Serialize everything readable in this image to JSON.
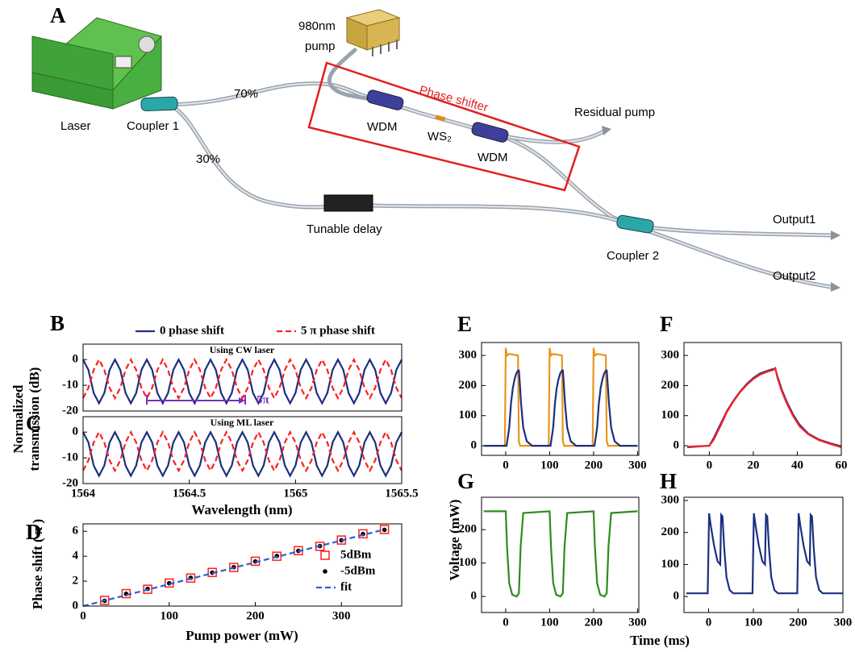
{
  "diagram": {
    "panel": "A",
    "pump": [
      "980nm",
      "pump"
    ],
    "laser": "Laser",
    "coupler1": "Coupler 1",
    "split_upper": "70%",
    "split_lower": "30%",
    "phase_shifter": "Phase shifter",
    "wdm": [
      "WDM",
      "WDM"
    ],
    "ws2": "WS₂",
    "residual": "Residual pump",
    "delay": "Tunable delay",
    "coupler2": "Coupler 2",
    "outputs": [
      "Output1",
      "Output2"
    ]
  },
  "chart_data": [
    {
      "type": "line",
      "panel": "B",
      "ylabel": [
        "Normalized",
        "transmission (dB)"
      ],
      "annotations": [
        "Using CW laser",
        "5π"
      ],
      "x": [
        1564,
        1564.025,
        1564.05,
        1564.075,
        1564.1,
        1564.125,
        1564.15,
        1564.175,
        1564.2,
        1564.225,
        1564.25,
        1564.275,
        1564.3,
        1564.325,
        1564.35,
        1564.375,
        1564.4,
        1564.425,
        1564.45,
        1564.475,
        1564.5,
        1564.525,
        1564.55,
        1564.575,
        1564.6,
        1564.625,
        1564.65,
        1564.675,
        1564.7,
        1564.725,
        1564.75,
        1564.775,
        1564.8,
        1564.825,
        1564.85,
        1564.875,
        1564.9,
        1564.925,
        1564.95,
        1564.975,
        1565,
        1565.025,
        1565.05,
        1565.075,
        1565.1,
        1565.125,
        1565.15,
        1565.175,
        1565.2,
        1565.225,
        1565.25,
        1565.275,
        1565.3,
        1565.325,
        1565.35,
        1565.375,
        1565.4,
        1565.425,
        1565.45,
        1565.475,
        1565.5
      ],
      "series": [
        {
          "name": "0 phase shift",
          "color": "#1c2f80",
          "style": "line",
          "values": [
            0,
            -4,
            -13,
            -17,
            -13,
            -4,
            0,
            -4,
            -13,
            -17,
            -13,
            -4,
            0,
            -4,
            -13,
            -17,
            -13,
            -4,
            0,
            -4,
            -13,
            -17,
            -13,
            -4,
            0,
            -4,
            -13,
            -17,
            -13,
            -4,
            0,
            -4,
            -13,
            -17,
            -13,
            -4,
            0,
            -4,
            -13,
            -17,
            -13,
            -4,
            0,
            -4,
            -13,
            -17,
            -13,
            -4,
            0,
            -4,
            -13,
            -17,
            -13,
            -4,
            0,
            -4,
            -13,
            -17,
            -13,
            -4,
            0
          ]
        },
        {
          "name": "5 π phase shift",
          "color": "#ff1f1f",
          "style": "dashed",
          "values": [
            -15,
            -11,
            -4,
            0,
            -4,
            -11,
            -15,
            -11,
            -4,
            0,
            -4,
            -11,
            -15,
            -11,
            -4,
            0,
            -4,
            -11,
            -15,
            -11,
            -4,
            0,
            -4,
            -11,
            -15,
            -11,
            -4,
            0,
            -4,
            -11,
            -15,
            -11,
            -4,
            0,
            -4,
            -11,
            -15,
            -11,
            -4,
            0,
            -4,
            -11,
            -15,
            -11,
            -4,
            0,
            -4,
            -11,
            -15,
            -11,
            -4,
            0,
            -4,
            -11,
            -15,
            -11,
            -4,
            0,
            -4,
            -11,
            -15
          ]
        }
      ],
      "xlim": [
        1564,
        1565.5
      ],
      "ylim": [
        -20,
        6
      ],
      "yticks": [
        0,
        -10,
        -20
      ]
    },
    {
      "type": "line",
      "panel": "C",
      "xlabel": "Wavelength (nm)",
      "annotations": [
        "Using ML laser"
      ],
      "x": [
        1564,
        1564.025,
        1564.05,
        1564.075,
        1564.1,
        1564.125,
        1564.15,
        1564.175,
        1564.2,
        1564.225,
        1564.25,
        1564.275,
        1564.3,
        1564.325,
        1564.35,
        1564.375,
        1564.4,
        1564.425,
        1564.45,
        1564.475,
        1564.5,
        1564.525,
        1564.55,
        1564.575,
        1564.6,
        1564.625,
        1564.65,
        1564.675,
        1564.7,
        1564.725,
        1564.75,
        1564.775,
        1564.8,
        1564.825,
        1564.85,
        1564.875,
        1564.9,
        1564.925,
        1564.95,
        1564.975,
        1565,
        1565.025,
        1565.05,
        1565.075,
        1565.1,
        1565.125,
        1565.15,
        1565.175,
        1565.2,
        1565.225,
        1565.25,
        1565.275,
        1565.3,
        1565.325,
        1565.35,
        1565.375,
        1565.4,
        1565.425,
        1565.45,
        1565.475,
        1565.5
      ],
      "series": [
        {
          "color": "#1c2f80",
          "style": "line",
          "values": [
            0,
            -4,
            -13,
            -17,
            -13,
            -4,
            0,
            -4,
            -13,
            -17,
            -13,
            -4,
            0,
            -4,
            -13,
            -17,
            -13,
            -4,
            0,
            -4,
            -13,
            -17,
            -13,
            -4,
            0,
            -4,
            -13,
            -17,
            -13,
            -4,
            0,
            -4,
            -13,
            -17,
            -13,
            -4,
            0,
            -4,
            -13,
            -17,
            -13,
            -4,
            0,
            -4,
            -13,
            -17,
            -13,
            -4,
            0,
            -4,
            -13,
            -17,
            -13,
            -4,
            0,
            -4,
            -13,
            -17,
            -13,
            -4,
            0
          ]
        },
        {
          "color": "#ff1f1f",
          "style": "dashed",
          "values": [
            -15,
            -11,
            -4,
            0,
            -4,
            -11,
            -15,
            -11,
            -4,
            0,
            -4,
            -11,
            -15,
            -11,
            -4,
            0,
            -4,
            -11,
            -15,
            -11,
            -4,
            0,
            -4,
            -11,
            -15,
            -11,
            -4,
            0,
            -4,
            -11,
            -15,
            -11,
            -4,
            0,
            -4,
            -11,
            -15,
            -11,
            -4,
            0,
            -4,
            -11,
            -15,
            -11,
            -4,
            0,
            -4,
            -11,
            -15,
            -11,
            -4,
            0,
            -4,
            -11,
            -15,
            -11,
            -4,
            0,
            -4,
            -11,
            -15
          ]
        }
      ],
      "xlim": [
        1564,
        1565.5
      ],
      "xticks": [
        1564,
        1564.5,
        1565,
        1565.5
      ],
      "ylim": [
        -20,
        6
      ],
      "yticks": [
        0,
        -10,
        -20
      ]
    },
    {
      "type": "scatter",
      "panel": "D",
      "xlabel": "Pump power (mW)",
      "ylabel": "Phase shift ( π )",
      "series": [
        {
          "name": "5dBm",
          "color": "#ff1f1f",
          "style": "square",
          "x": [
            25,
            50,
            75,
            100,
            125,
            150,
            175,
            200,
            225,
            250,
            275,
            300,
            325,
            350
          ],
          "values": [
            0.45,
            1.0,
            1.35,
            1.85,
            2.25,
            2.7,
            3.1,
            3.6,
            4.0,
            4.45,
            4.8,
            5.3,
            5.8,
            6.15
          ]
        },
        {
          "name": "-5dBm",
          "color": "#000000",
          "style": "dot",
          "x": [
            25,
            50,
            75,
            100,
            125,
            150,
            175,
            200,
            225,
            250,
            275,
            300,
            325,
            350
          ],
          "values": [
            0.42,
            0.98,
            1.38,
            1.83,
            2.27,
            2.68,
            3.12,
            3.58,
            4.02,
            4.43,
            4.82,
            5.28,
            5.78,
            6.12
          ]
        },
        {
          "name": "fit",
          "color": "#2f5fd0",
          "style": "dashed",
          "x": [
            0,
            350
          ],
          "values": [
            0,
            6.15
          ]
        }
      ],
      "xlim": [
        0,
        370
      ],
      "xticks": [
        0,
        100,
        200,
        300
      ],
      "ylim": [
        0,
        6.6
      ],
      "yticks": [
        0,
        2,
        4,
        6
      ]
    },
    {
      "type": "line",
      "panel": "E",
      "ylabel": "Voltage (mW)",
      "series": [
        {
          "color": "#e8951e",
          "style": "line",
          "x": [
            -50,
            -2,
            0,
            3,
            8,
            28,
            30,
            33,
            98,
            100,
            103,
            108,
            128,
            130,
            133,
            198,
            200,
            203,
            208,
            228,
            230,
            233,
            300
          ],
          "values": [
            0,
            0,
            325,
            300,
            305,
            300,
            15,
            0,
            0,
            325,
            300,
            305,
            300,
            15,
            0,
            0,
            325,
            300,
            305,
            300,
            15,
            0,
            0
          ]
        },
        {
          "color": "#1c2f80",
          "style": "line",
          "x": [
            -50,
            2,
            8,
            12,
            16,
            20,
            24,
            28,
            30,
            32,
            35,
            40,
            48,
            60,
            102,
            108,
            112,
            116,
            120,
            124,
            128,
            130,
            132,
            135,
            140,
            148,
            160,
            202,
            208,
            212,
            216,
            220,
            224,
            228,
            230,
            232,
            235,
            240,
            248,
            260,
            300
          ],
          "values": [
            0,
            0,
            60,
            140,
            190,
            220,
            240,
            250,
            250,
            210,
            140,
            60,
            15,
            0,
            0,
            60,
            140,
            190,
            220,
            240,
            250,
            250,
            210,
            140,
            60,
            15,
            0,
            0,
            60,
            140,
            190,
            220,
            240,
            250,
            250,
            210,
            140,
            60,
            15,
            0,
            0
          ]
        }
      ],
      "xlim": [
        -55,
        303
      ],
      "xticks": [
        0,
        100,
        200,
        300
      ],
      "ylim": [
        -32,
        343
      ],
      "yticks": [
        0,
        100,
        200,
        300
      ]
    },
    {
      "type": "line",
      "panel": "F",
      "series": [
        {
          "color": "#1c2f80",
          "style": "line",
          "x": [
            -10,
            0,
            2,
            5,
            8,
            11,
            14,
            17,
            20,
            23,
            26,
            29,
            30,
            31,
            33,
            35,
            38,
            41,
            45,
            50,
            55,
            60
          ],
          "values": [
            -5,
            0,
            25,
            70,
            115,
            150,
            180,
            205,
            225,
            240,
            248,
            255,
            255,
            230,
            185,
            150,
            105,
            70,
            40,
            20,
            8,
            -2
          ]
        },
        {
          "color": "#ff1f1f",
          "style": "line",
          "x": [
            -10,
            0,
            2,
            5,
            8,
            11,
            14,
            17,
            20,
            23,
            26,
            29,
            30,
            31,
            33,
            35,
            38,
            41,
            45,
            50,
            55,
            60
          ],
          "values": [
            -3,
            0,
            20,
            65,
            112,
            148,
            178,
            202,
            222,
            236,
            245,
            252,
            258,
            225,
            180,
            145,
            100,
            65,
            38,
            18,
            6,
            -5
          ]
        }
      ],
      "xlim": [
        -11.5,
        60
      ],
      "xticks": [
        0,
        20,
        40,
        60
      ],
      "ylim": [
        -32,
        343
      ],
      "yticks": [
        0,
        100,
        200,
        300
      ]
    },
    {
      "type": "line",
      "panel": "G",
      "xlabel": "Time (ms)",
      "series": [
        {
          "color": "#2e8b1e",
          "style": "line",
          "x": [
            -50,
            0,
            3,
            8,
            15,
            25,
            30,
            34,
            40,
            100,
            103,
            108,
            115,
            125,
            130,
            134,
            140,
            200,
            203,
            208,
            215,
            225,
            230,
            234,
            240,
            300
          ],
          "values": [
            255,
            255,
            150,
            40,
            5,
            0,
            10,
            150,
            250,
            255,
            150,
            40,
            5,
            0,
            10,
            150,
            250,
            255,
            150,
            40,
            5,
            0,
            10,
            150,
            250,
            255
          ]
        }
      ],
      "xlim": [
        -55,
        303
      ],
      "xticks": [
        0,
        100,
        200,
        300
      ],
      "ylim": [
        -48,
        297
      ],
      "yticks": [
        0,
        100,
        200
      ]
    },
    {
      "type": "line",
      "panel": "H",
      "series": [
        {
          "color": "#1c2f80",
          "style": "line",
          "x": [
            -50,
            -2,
            1,
            5,
            12,
            20,
            26,
            28,
            31,
            35,
            40,
            47,
            55,
            98,
            101,
            105,
            112,
            120,
            126,
            128,
            131,
            135,
            140,
            147,
            155,
            198,
            201,
            205,
            212,
            220,
            226,
            228,
            231,
            235,
            240,
            247,
            255,
            300
          ],
          "values": [
            10,
            10,
            260,
            220,
            160,
            110,
            100,
            255,
            250,
            150,
            60,
            20,
            10,
            10,
            260,
            220,
            160,
            110,
            100,
            255,
            250,
            150,
            60,
            20,
            10,
            10,
            260,
            220,
            160,
            110,
            100,
            255,
            250,
            150,
            60,
            20,
            10,
            10
          ]
        }
      ],
      "xlim": [
        -55,
        300
      ],
      "xticks": [
        0,
        100,
        200,
        300
      ],
      "ylim": [
        -50,
        310
      ],
      "yticks": [
        0,
        100,
        200,
        300
      ]
    }
  ]
}
